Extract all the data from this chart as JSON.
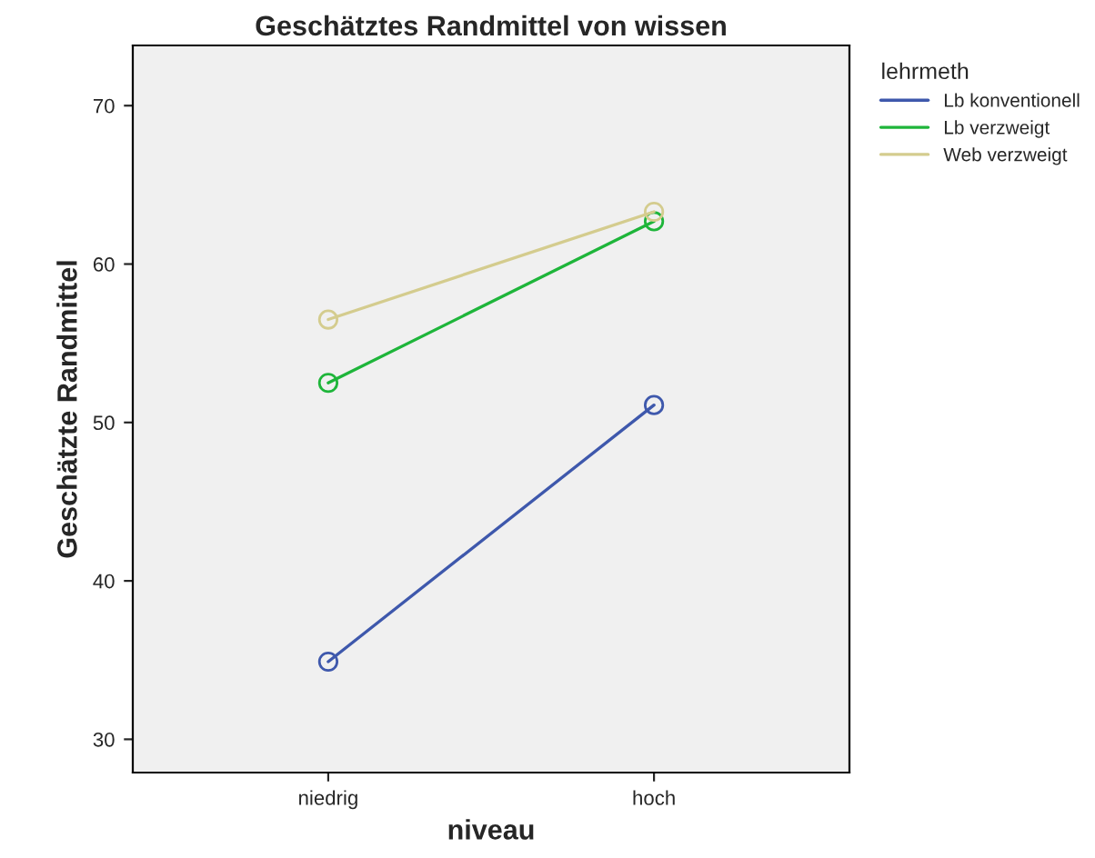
{
  "chart_data": {
    "type": "line",
    "title": "Geschätztes Randmittel von wissen",
    "xlabel": "niveau",
    "ylabel": "Geschätzte Randmittel",
    "legend_title": "lehrmeth",
    "categories": [
      "niedrig",
      "hoch"
    ],
    "series": [
      {
        "name": "Lb konventionell",
        "color": "#3e58ac",
        "values": [
          34.9,
          51.1
        ]
      },
      {
        "name": "Lb verzweigt",
        "color": "#1eb53a",
        "values": [
          52.5,
          62.7
        ]
      },
      {
        "name": "Web verzweigt",
        "color": "#d4cc8e",
        "values": [
          56.5,
          63.3
        ]
      }
    ],
    "ylim": [
      27.9,
      73.8
    ],
    "yticks": [
      30,
      40,
      50,
      60,
      70
    ],
    "grid": false,
    "legend": "top right",
    "marker": "circle",
    "line_style": "solid"
  }
}
